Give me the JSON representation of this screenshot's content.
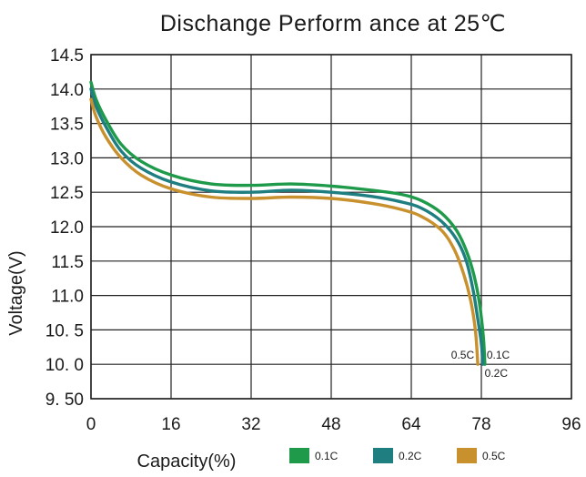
{
  "chart_data": {
    "type": "line",
    "title": "Dischange Perform ance at 25℃",
    "xlabel": "Capacity(%)",
    "ylabel": "Voltage(V)",
    "xlim": [
      0,
      96
    ],
    "ylim": [
      9.5,
      14.5
    ],
    "x_ticks": [
      "0",
      "16",
      "32",
      "48",
      "64",
      "78",
      "96"
    ],
    "x_tick_values": [
      0,
      16,
      32,
      48,
      64,
      78,
      96
    ],
    "y_ticks": [
      "14.5",
      "14.0",
      "13.5",
      "13.0",
      "12.5",
      "12.0",
      "11.5",
      "11.0",
      "10. 5",
      "10. 0",
      "9. 50"
    ],
    "y_tick_values": [
      14.5,
      14.0,
      13.5,
      13.0,
      12.5,
      12.0,
      11.5,
      11.0,
      10.5,
      10.0,
      9.5
    ],
    "grid": true,
    "legend_position": "bottom",
    "series": [
      {
        "name": "0.1C",
        "color": "#1e9a4a",
        "end_label": "0.1C",
        "points": [
          [
            0,
            14.1
          ],
          [
            1,
            13.85
          ],
          [
            3,
            13.55
          ],
          [
            6,
            13.2
          ],
          [
            10,
            12.95
          ],
          [
            16,
            12.75
          ],
          [
            24,
            12.62
          ],
          [
            32,
            12.6
          ],
          [
            40,
            12.62
          ],
          [
            48,
            12.59
          ],
          [
            56,
            12.53
          ],
          [
            62,
            12.47
          ],
          [
            66,
            12.38
          ],
          [
            70,
            12.2
          ],
          [
            73,
            11.95
          ],
          [
            75,
            11.65
          ],
          [
            76.5,
            11.3
          ],
          [
            77.6,
            10.9
          ],
          [
            78.4,
            10.4
          ],
          [
            78.7,
            10.0
          ]
        ]
      },
      {
        "name": "0.2C",
        "color": "#1e7e80",
        "end_label": "0.2C",
        "points": [
          [
            0,
            14.0
          ],
          [
            1,
            13.75
          ],
          [
            3,
            13.45
          ],
          [
            6,
            13.1
          ],
          [
            10,
            12.85
          ],
          [
            16,
            12.65
          ],
          [
            24,
            12.52
          ],
          [
            32,
            12.5
          ],
          [
            40,
            12.53
          ],
          [
            48,
            12.5
          ],
          [
            56,
            12.44
          ],
          [
            62,
            12.36
          ],
          [
            66,
            12.27
          ],
          [
            70,
            12.08
          ],
          [
            73,
            11.82
          ],
          [
            75,
            11.5
          ],
          [
            76.3,
            11.1
          ],
          [
            77.2,
            10.7
          ],
          [
            78,
            10.3
          ],
          [
            78.3,
            10.0
          ]
        ]
      },
      {
        "name": "0.5C",
        "color": "#c8912e",
        "end_label": "0.5C",
        "points": [
          [
            0,
            13.85
          ],
          [
            1,
            13.6
          ],
          [
            3,
            13.3
          ],
          [
            6,
            13.0
          ],
          [
            10,
            12.75
          ],
          [
            16,
            12.55
          ],
          [
            24,
            12.43
          ],
          [
            32,
            12.41
          ],
          [
            40,
            12.43
          ],
          [
            48,
            12.41
          ],
          [
            56,
            12.34
          ],
          [
            62,
            12.25
          ],
          [
            66,
            12.15
          ],
          [
            70,
            11.95
          ],
          [
            72.5,
            11.68
          ],
          [
            74.3,
            11.35
          ],
          [
            75.8,
            10.95
          ],
          [
            76.8,
            10.5
          ],
          [
            77.3,
            10.0
          ]
        ]
      }
    ]
  }
}
